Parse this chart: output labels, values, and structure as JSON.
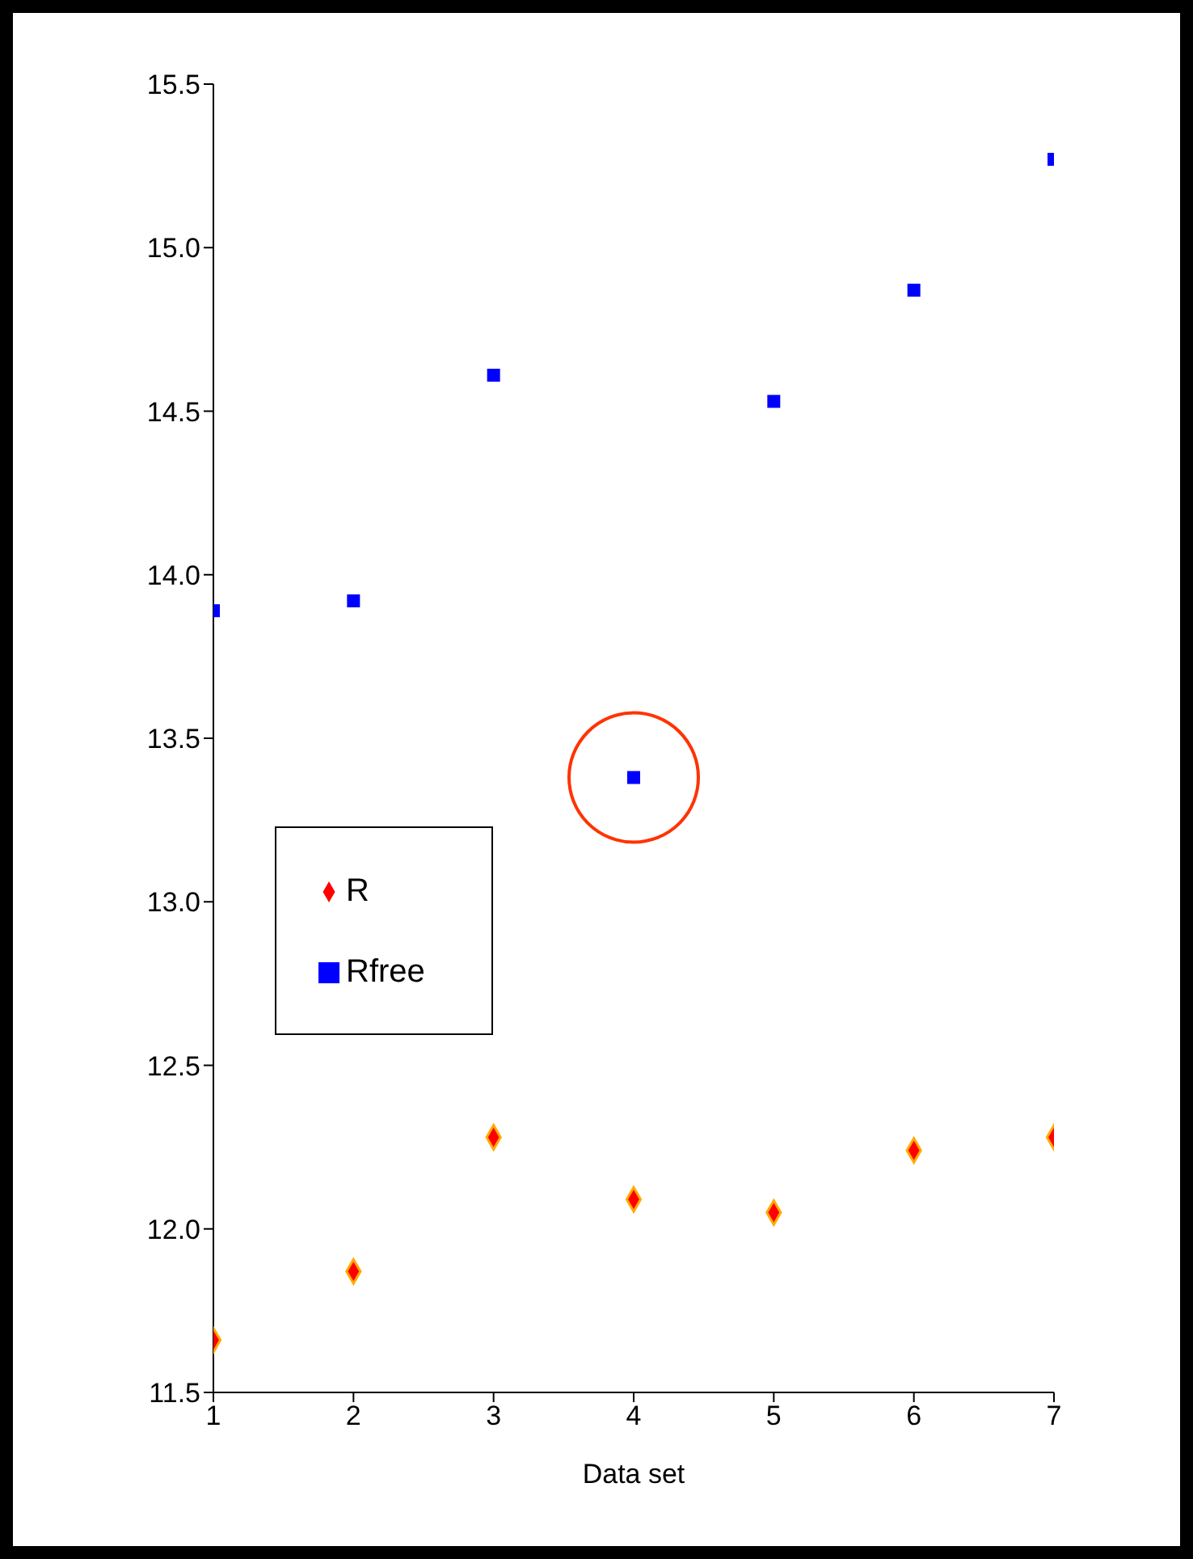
{
  "chart_data": {
    "type": "scatter",
    "xlabel": "Data set",
    "x": [
      1,
      2,
      3,
      4,
      5,
      6,
      7
    ],
    "series": [
      {
        "name": "R",
        "color": "#ff0000",
        "marker": "diamond",
        "values": [
          11.66,
          11.87,
          12.28,
          12.09,
          12.05,
          12.24,
          12.28
        ]
      },
      {
        "name": "Rfree",
        "color": "#0000ff",
        "marker": "square",
        "values": [
          13.89,
          13.92,
          14.61,
          13.38,
          14.53,
          14.87,
          15.27
        ]
      }
    ],
    "xlim": [
      1,
      7
    ],
    "xticks": [
      1,
      2,
      3,
      4,
      5,
      6,
      7
    ],
    "ylim": [
      11.5,
      15.5
    ],
    "yticks": [
      {
        "value": 11.5,
        "label": "11.5"
      },
      {
        "value": 12,
        "label": "12.0"
      },
      {
        "value": 12.5,
        "label": "12.5"
      },
      {
        "value": 13,
        "label": "13.0"
      },
      {
        "value": 13.5,
        "label": "13.5"
      },
      {
        "value": 14,
        "label": "14.0"
      },
      {
        "value": 14.5,
        "label": "14.5"
      },
      {
        "value": 15,
        "label": "15.0"
      },
      {
        "value": 15.5,
        "label": "15.5"
      }
    ],
    "legend": "left",
    "grid": false
  }
}
